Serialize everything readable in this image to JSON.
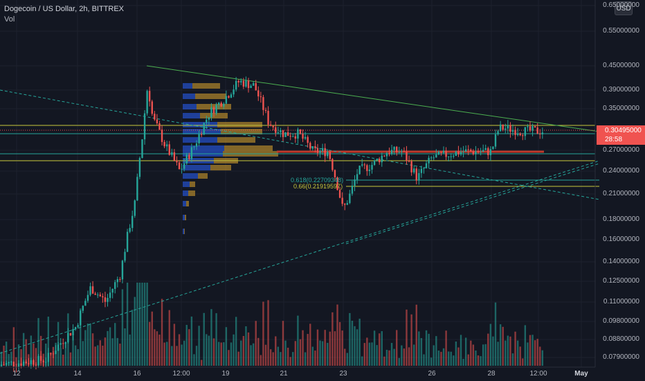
{
  "header": {
    "title": "Dogecoin / US Dollar, 2h, BITTREX",
    "volume_label": "Vol"
  },
  "currency_button": "USD",
  "price_axis": {
    "labels": [
      "0.65000000",
      "0.55000000",
      "0.45000000",
      "0.39000000",
      "0.35000000",
      "0.27000000",
      "0.24000000",
      "0.21000000",
      "0.18000000",
      "0.16000000",
      "0.14000000",
      "0.12500000",
      "0.11000000",
      "0.09800000",
      "0.08800000",
      "0.07900000"
    ]
  },
  "current_price": {
    "value": "0.30495000",
    "countdown": "28:58",
    "color": "#f05350"
  },
  "time_axis": {
    "labels": [
      "12",
      "14",
      "16",
      "12:00",
      "19",
      "21",
      "23",
      "26",
      "28",
      "12:00",
      "May"
    ]
  },
  "fibonacci": [
    {
      "label": "0.618(0.22709348)",
      "value": 0.22709348,
      "color": "#26a69a"
    },
    {
      "label": "0.66(0.21919597)",
      "value": 0.21919597,
      "color": "#c8c83c"
    }
  ],
  "colors": {
    "background": "#131722",
    "up": "#26a69a",
    "down": "#ef5350",
    "grid": "#1e222d",
    "trendline": "#4caf50",
    "horizontal_yellow": "#c8c83c",
    "support_red": "#c0392b",
    "volume_profile_blue": "#2962ff",
    "volume_profile_gold": "#e0a82e"
  },
  "chart_data": {
    "type": "candlestick",
    "title": "Dogecoin / US Dollar, 2h, BITTREX",
    "x_range": [
      "Apr 11",
      "May 1"
    ],
    "y_scale": "log",
    "horizontal_levels": [
      0.307,
      0.297,
      0.26,
      0.27,
      0.227,
      0.219
    ],
    "price_path": [
      [
        "Apr 11",
        0.075
      ],
      [
        "Apr 13",
        0.078
      ],
      [
        "Apr 14",
        0.095
      ],
      [
        "Apr 14 12:00",
        0.12
      ],
      [
        "Apr 15",
        0.11
      ],
      [
        "Apr 15 12:00",
        0.13
      ],
      [
        "Apr 16",
        0.2
      ],
      [
        "Apr 16 06:00",
        0.3
      ],
      [
        "Apr 16 10:00",
        0.4
      ],
      [
        "Apr 16 14:00",
        0.33
      ],
      [
        "Apr 17",
        0.28
      ],
      [
        "Apr 17 12:00",
        0.24
      ],
      [
        "Apr 18",
        0.28
      ],
      [
        "Apr 18 12:00",
        0.34
      ],
      [
        "Apr 19",
        0.37
      ],
      [
        "Apr 19 12:00",
        0.41
      ],
      [
        "Apr 20",
        0.4
      ],
      [
        "Apr 20 12:00",
        0.32
      ],
      [
        "Apr 21",
        0.3
      ],
      [
        "Apr 21 12:00",
        0.3
      ],
      [
        "Apr 22",
        0.27
      ],
      [
        "Apr 22 12:00",
        0.27
      ],
      [
        "Apr 23",
        0.19
      ],
      [
        "Apr 23 06:00",
        0.21
      ],
      [
        "Apr 23 12:00",
        0.24
      ],
      [
        "Apr 24",
        0.25
      ],
      [
        "Apr 24 12:00",
        0.27
      ],
      [
        "Apr 25",
        0.27
      ],
      [
        "Apr 25 12:00",
        0.23
      ],
      [
        "Apr 26",
        0.26
      ],
      [
        "Apr 27",
        0.27
      ],
      [
        "Apr 28",
        0.27
      ],
      [
        "Apr 28 06:00",
        0.31
      ],
      [
        "Apr 28 12:00",
        0.31
      ],
      [
        "Apr 29",
        0.305
      ]
    ]
  }
}
